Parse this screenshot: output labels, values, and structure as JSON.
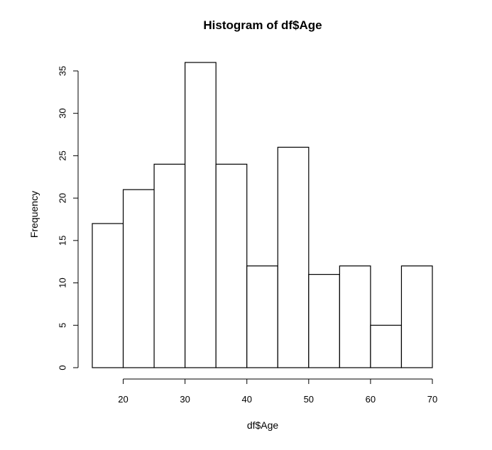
{
  "chart_data": {
    "type": "bar",
    "title": "Histogram of df$Age",
    "xlabel": "df$Age",
    "ylabel": "Frequency",
    "bins": [
      {
        "start": 15,
        "end": 20,
        "value": 17
      },
      {
        "start": 20,
        "end": 25,
        "value": 21
      },
      {
        "start": 25,
        "end": 30,
        "value": 24
      },
      {
        "start": 30,
        "end": 35,
        "value": 36
      },
      {
        "start": 35,
        "end": 40,
        "value": 24
      },
      {
        "start": 40,
        "end": 45,
        "value": 12
      },
      {
        "start": 45,
        "end": 50,
        "value": 26
      },
      {
        "start": 50,
        "end": 55,
        "value": 11
      },
      {
        "start": 55,
        "end": 60,
        "value": 12
      },
      {
        "start": 60,
        "end": 65,
        "value": 5
      },
      {
        "start": 65,
        "end": 70,
        "value": 12
      }
    ],
    "xticks": [
      20,
      30,
      40,
      50,
      60,
      70
    ],
    "yticks": [
      0,
      5,
      10,
      15,
      20,
      25,
      30,
      35
    ],
    "xlim": [
      15,
      70
    ],
    "ylim": [
      0,
      36
    ],
    "grid": false,
    "legend": "none",
    "colors": {
      "bar_fill": "#ffffff",
      "bar_stroke": "#000000"
    }
  }
}
